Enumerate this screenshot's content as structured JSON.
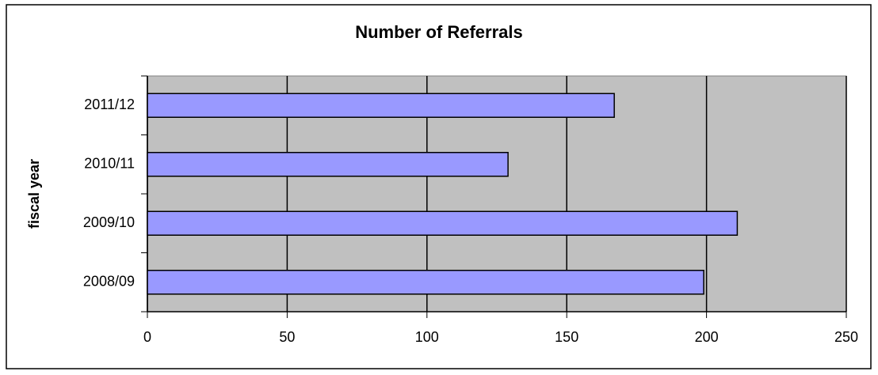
{
  "chart_data": {
    "type": "barh",
    "title": "Number of Referrals",
    "ylabel": "fiscal year",
    "categories": [
      "2008/09",
      "2009/10",
      "2010/11",
      "2011/12"
    ],
    "values": [
      199,
      211,
      129,
      167
    ],
    "color": "#9999ff",
    "xlim": [
      0,
      250
    ],
    "xticks": [
      0,
      50,
      100,
      150,
      200,
      250
    ],
    "grid": true,
    "plot_background": "#c0c0c0"
  }
}
